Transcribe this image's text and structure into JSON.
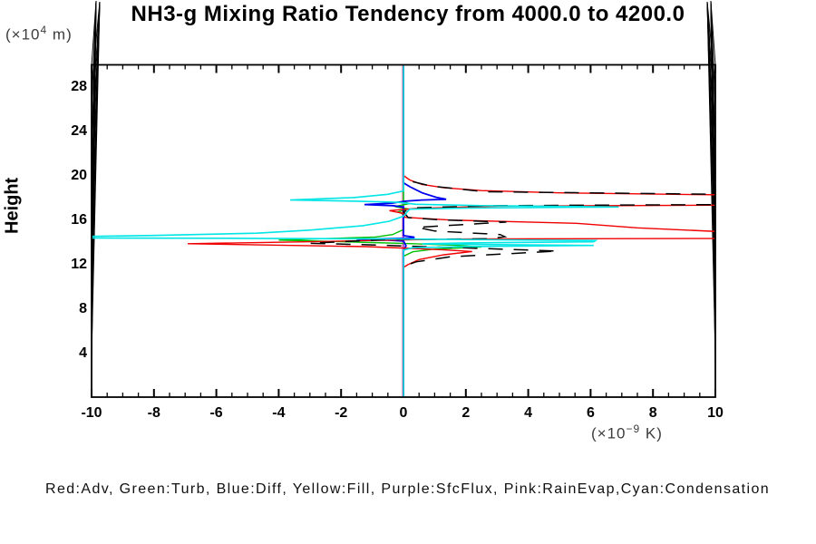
{
  "title": "NH3-g Mixing Ratio Tendency from 4000.0 to 4200.0",
  "y_axis_label": "Height",
  "y_axis_unit": {
    "prefix": "(×10",
    "exp": "4",
    "suffix": " m)"
  },
  "x_axis_unit": {
    "prefix": "(×10",
    "exp": "−9",
    "suffix": " K)"
  },
  "legend_text": "Red:Adv, Green:Turb, Blue:Diff, Yellow:Fill, Purple:SfcFlux, Pink:RainEvap,Cyan:Condensation",
  "chart_data": {
    "type": "line",
    "title": "NH3-g Mixing Ratio Tendency from 4000.0 to 4200.0",
    "xlabel": "(×10⁻⁹ K)",
    "ylabel": "Height (×10⁴ m)",
    "xlim": [
      -10,
      10
    ],
    "ylim": [
      0,
      30
    ],
    "grid": false,
    "legend_position": "below-plot-caption",
    "x_ticks_major": [
      -10,
      -8,
      -6,
      -4,
      -2,
      0,
      2,
      4,
      6,
      8,
      10
    ],
    "x_tick_labels": [
      "-10",
      "-8",
      "-6",
      "-4",
      "-2",
      "0",
      "2",
      "4",
      "6",
      "8",
      "10"
    ],
    "x_minor_step": 0.5,
    "y_ticks_major": [
      4,
      8,
      12,
      16,
      20,
      24,
      28
    ],
    "y_tick_labels": [
      "4",
      "8",
      "12",
      "16",
      "20",
      "24",
      "28"
    ],
    "y_minor_step": 2,
    "zero_line": {
      "x": 0,
      "color": "#00eded"
    },
    "series": [
      {
        "name": "fill",
        "legend": "Yellow:Fill",
        "color": "#ffff00",
        "width": 1.2,
        "dash": "",
        "points": [
          [
            0,
            30
          ],
          [
            0,
            0.2
          ]
        ]
      },
      {
        "name": "sfcflux",
        "legend": "Purple:SfcFlux",
        "color": "#b000f0",
        "width": 1.2,
        "dash": "",
        "points": [
          [
            0,
            30
          ],
          [
            0,
            0.2
          ]
        ]
      },
      {
        "name": "rainevap",
        "legend": "Pink:RainEvap",
        "color": "#ff9ec8",
        "width": 1.2,
        "dash": "",
        "points": [
          [
            -0.04,
            30
          ],
          [
            -0.04,
            0.2
          ]
        ]
      },
      {
        "name": "turb",
        "legend": "Green:Turb",
        "color": "#00c000",
        "width": 1.4,
        "dash": "",
        "points": [
          [
            0,
            30
          ],
          [
            0,
            17.78
          ],
          [
            0.18,
            17.58
          ],
          [
            -0.28,
            17.32
          ],
          [
            0.15,
            17.1
          ],
          [
            -0.15,
            16.85
          ],
          [
            0,
            16.6
          ],
          [
            0,
            15.25
          ],
          [
            -0.35,
            14.8
          ],
          [
            -0.9,
            14.58
          ],
          [
            -4,
            14.3
          ],
          [
            -1.5,
            14.12
          ],
          [
            0.3,
            13.98
          ],
          [
            1.6,
            13.85
          ],
          [
            2.5,
            13.68
          ],
          [
            1,
            13.5
          ],
          [
            0.3,
            13.25
          ],
          [
            0,
            12.85
          ],
          [
            0,
            0.2
          ]
        ]
      },
      {
        "name": "diff",
        "legend": "Blue:Diff",
        "color": "#0000f0",
        "width": 1.8,
        "dash": "",
        "points": [
          [
            0,
            30
          ],
          [
            0,
            19.45
          ],
          [
            0.2,
            19.1
          ],
          [
            0.6,
            18.55
          ],
          [
            1.05,
            18.15
          ],
          [
            1.37,
            17.97
          ],
          [
            0.6,
            17.9
          ],
          [
            0.05,
            17.8
          ],
          [
            -0.35,
            17.63
          ],
          [
            -1.25,
            17.5
          ],
          [
            -0.35,
            17.4
          ],
          [
            0,
            17.28
          ],
          [
            0,
            14.7
          ],
          [
            0.33,
            14.57
          ],
          [
            0.33,
            14.47
          ],
          [
            -0.4,
            14.43
          ],
          [
            -1.5,
            14.38
          ],
          [
            -0.5,
            14.3
          ],
          [
            0,
            14.22
          ],
          [
            0.08,
            13.8
          ],
          [
            0,
            13.3
          ],
          [
            0,
            0.2
          ]
        ]
      },
      {
        "name": "adv",
        "legend": "Red:Adv",
        "color": "#f00000",
        "width": 1.4,
        "dash": "",
        "points": [
          [
            0,
            30
          ],
          [
            0,
            20.1
          ],
          [
            0.2,
            19.7
          ],
          [
            0.6,
            19.3
          ],
          [
            1.3,
            19
          ],
          [
            2.5,
            18.75
          ],
          [
            5,
            18.55
          ],
          [
            10.6,
            18.35
          ],
          [
            10.6,
            17.45
          ],
          [
            3,
            17.35
          ],
          [
            0.4,
            17.15
          ],
          [
            -0.45,
            16.95
          ],
          [
            0,
            16.7
          ],
          [
            0.05,
            16.35
          ],
          [
            1.5,
            16.1
          ],
          [
            4,
            15.92
          ],
          [
            5.6,
            15.8
          ],
          [
            7.5,
            15.4
          ],
          [
            10.6,
            15
          ],
          [
            10.6,
            14.45
          ],
          [
            2,
            14.4
          ],
          [
            0,
            14.33
          ],
          [
            -2.5,
            14.18
          ],
          [
            -6.92,
            13.98
          ],
          [
            -4,
            13.85
          ],
          [
            -1.2,
            13.72
          ],
          [
            0.3,
            13.55
          ],
          [
            1.3,
            13.42
          ],
          [
            2.2,
            13.28
          ],
          [
            1.3,
            12.98
          ],
          [
            0.5,
            12.55
          ],
          [
            0.15,
            12.1
          ],
          [
            0,
            11.85
          ],
          [
            0,
            0.2
          ]
        ]
      },
      {
        "name": "net-total",
        "legend": "",
        "color": "#000000",
        "width": 1.5,
        "dash": "16 12",
        "points": [
          [
            0.3,
            19.55
          ],
          [
            0.9,
            19.15
          ],
          [
            2.6,
            18.65
          ],
          [
            10.6,
            18.4
          ],
          [
            10.6,
            17.5
          ],
          [
            3,
            17.4
          ],
          [
            0.4,
            17.2
          ],
          [
            0,
            16.85
          ],
          [
            0.15,
            16.32
          ],
          [
            1.2,
            16.12
          ],
          [
            3.3,
            15.92
          ],
          [
            0.45,
            15.45
          ],
          [
            1,
            15.12
          ],
          [
            3.1,
            14.8
          ],
          [
            3.25,
            14.6
          ],
          [
            2.7,
            14.42
          ],
          [
            -0.5,
            14.35
          ],
          [
            -3,
            14.02
          ],
          [
            -1,
            13.87
          ],
          [
            0.6,
            13.72
          ],
          [
            2,
            13.6
          ],
          [
            3.2,
            13.48
          ],
          [
            4.95,
            13.32
          ],
          [
            3.5,
            13.1
          ],
          [
            1.5,
            12.8
          ],
          [
            0.4,
            12.35
          ],
          [
            0.05,
            12
          ],
          [
            0,
            11.9
          ]
        ]
      },
      {
        "name": "condensation",
        "legend": "Cyan:Condensation",
        "color": "#00e5e5",
        "width": 1.6,
        "dash": "",
        "points": [
          [
            0,
            30
          ],
          [
            0,
            18.72
          ],
          [
            -0.5,
            18.42
          ],
          [
            -1.6,
            18.12
          ],
          [
            -3.63,
            17.9
          ],
          [
            -1.5,
            17.8
          ],
          [
            -0.2,
            17.7
          ],
          [
            0.4,
            17.52
          ],
          [
            2.5,
            17.4
          ],
          [
            6.9,
            17.28
          ],
          [
            2,
            17.18
          ],
          [
            0.2,
            17.08
          ],
          [
            0,
            16.45
          ],
          [
            -0.45,
            16
          ],
          [
            -1.3,
            15.6
          ],
          [
            -3,
            15.2
          ],
          [
            -4.7,
            14.92
          ],
          [
            -8,
            14.72
          ],
          [
            -10.6,
            14.62
          ],
          [
            -10.6,
            14.5
          ],
          [
            -5,
            14.46
          ],
          [
            0,
            14.4
          ],
          [
            3,
            14.33
          ],
          [
            6.16,
            14.26
          ],
          [
            6.1,
            14.15
          ],
          [
            2,
            14.05
          ],
          [
            0.6,
            13.97
          ],
          [
            2.5,
            13.9
          ],
          [
            6.1,
            13.82
          ],
          [
            2.5,
            13.73
          ],
          [
            0.3,
            13.62
          ],
          [
            0,
            13.4
          ],
          [
            0,
            0.2
          ]
        ]
      }
    ]
  }
}
